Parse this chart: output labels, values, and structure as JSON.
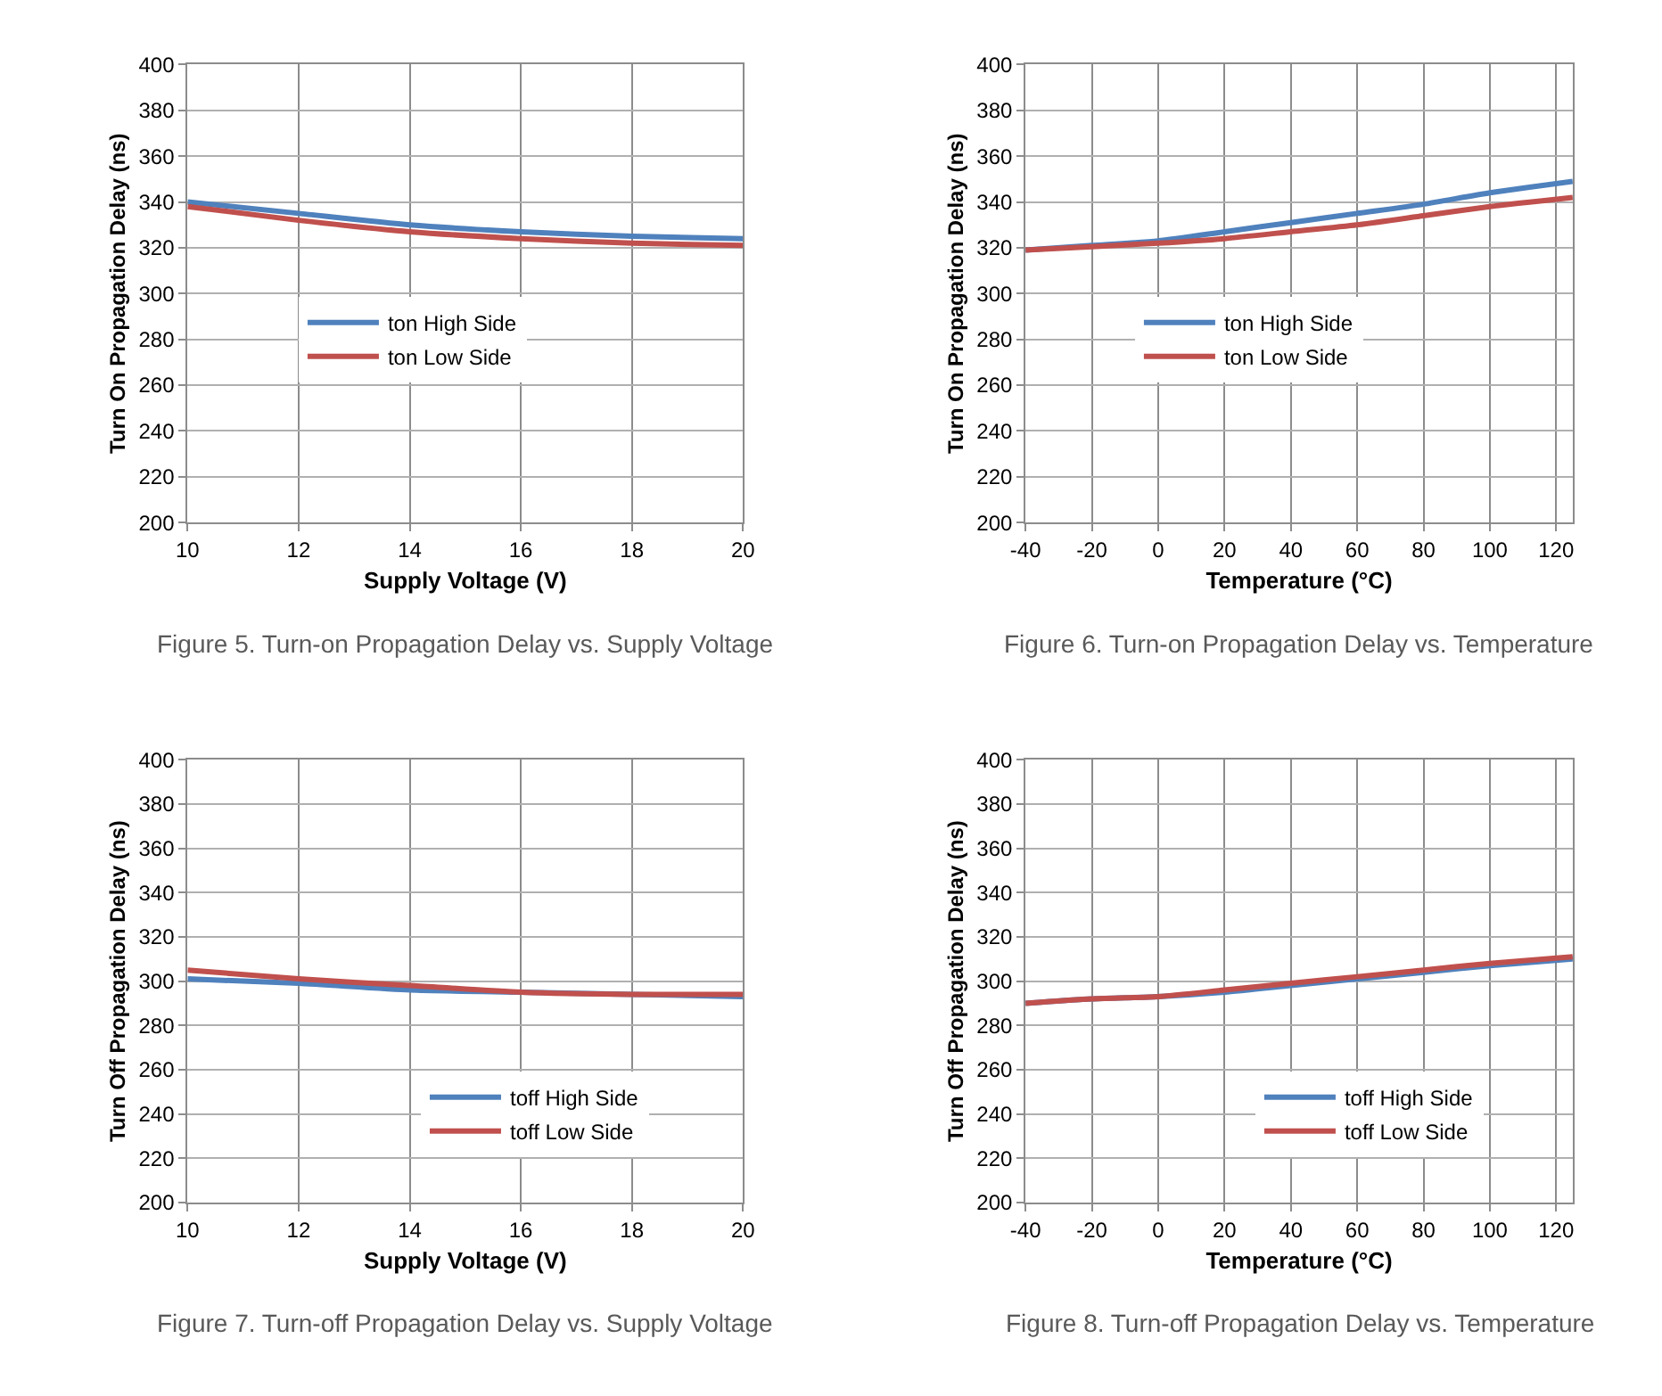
{
  "chart_data": [
    {
      "type": "line",
      "xlabel": "Supply Voltage (V)",
      "ylabel": "Turn On Propagation Delay (ns)",
      "annotations": [
        "Figure 5. Turn-on Propagation Delay vs. Supply Voltage"
      ],
      "x": [
        10,
        12,
        14,
        16,
        18,
        20
      ],
      "series": [
        {
          "name": "ton High Side",
          "color": "#4f81bd",
          "values": [
            340,
            335,
            330,
            327,
            325,
            324
          ]
        },
        {
          "name": "ton Low Side",
          "color": "#c0504d",
          "values": [
            338,
            332,
            327,
            324,
            322,
            321
          ]
        }
      ],
      "xlim": [
        10,
        20
      ],
      "xticks": [
        10,
        12,
        14,
        16,
        18,
        20
      ],
      "ylim": [
        200,
        400
      ],
      "yticks": [
        200,
        220,
        240,
        260,
        280,
        300,
        320,
        340,
        360,
        380,
        400
      ],
      "grid": true,
      "legend": "center left",
      "marker": "none",
      "line_style": "solid"
    },
    {
      "type": "line",
      "xlabel": "Temperature (°C)",
      "ylabel": "Turn On Propagation Delay (ns)",
      "annotations": [
        "Figure 6. Turn-on Propagation Delay vs. Temperature"
      ],
      "x": [
        -40,
        -20,
        0,
        20,
        40,
        60,
        80,
        100,
        125
      ],
      "series": [
        {
          "name": "ton High Side",
          "color": "#4f81bd",
          "values": [
            319,
            321,
            323,
            327,
            331,
            335,
            339,
            344,
            349
          ]
        },
        {
          "name": "ton Low Side",
          "color": "#c0504d",
          "values": [
            319,
            320.5,
            322,
            324,
            327,
            330,
            334,
            338,
            342
          ]
        }
      ],
      "xlim": [
        -40,
        125
      ],
      "xticks": [
        -40,
        -20,
        0,
        20,
        40,
        60,
        80,
        100,
        120
      ],
      "ylim": [
        200,
        400
      ],
      "yticks": [
        200,
        220,
        240,
        260,
        280,
        300,
        320,
        340,
        360,
        380,
        400
      ],
      "grid": true,
      "legend": "center left",
      "marker": "none",
      "line_style": "solid"
    },
    {
      "type": "line",
      "xlabel": "Supply Voltage (V)",
      "ylabel": "Turn Off Propagation Delay (ns)",
      "annotations": [
        "Figure 7. Turn-off Propagation Delay vs. Supply Voltage"
      ],
      "x": [
        10,
        12,
        14,
        16,
        18,
        20
      ],
      "series": [
        {
          "name": "toff High Side",
          "color": "#4f81bd",
          "values": [
            301,
            299,
            296,
            295,
            294,
            293
          ]
        },
        {
          "name": "toff Low Side",
          "color": "#c0504d",
          "values": [
            305,
            301,
            298,
            295,
            294,
            294
          ]
        }
      ],
      "xlim": [
        10,
        20
      ],
      "xticks": [
        10,
        12,
        14,
        16,
        18,
        20
      ],
      "ylim": [
        200,
        400
      ],
      "yticks": [
        200,
        220,
        240,
        260,
        280,
        300,
        320,
        340,
        360,
        380,
        400
      ],
      "grid": true,
      "legend": "bottom center",
      "marker": "none",
      "line_style": "solid"
    },
    {
      "type": "line",
      "xlabel": "Temperature (°C)",
      "ylabel": "Turn Off Propagation Delay (ns)",
      "annotations": [
        "Figure 8. Turn-off Propagation Delay vs. Temperature"
      ],
      "x": [
        -40,
        -20,
        0,
        20,
        40,
        60,
        80,
        100,
        125
      ],
      "series": [
        {
          "name": "toff High Side",
          "color": "#4f81bd",
          "values": [
            290,
            292,
            293,
            295,
            298,
            301,
            304,
            307,
            310
          ]
        },
        {
          "name": "toff Low Side",
          "color": "#c0504d",
          "values": [
            290,
            292,
            293,
            296,
            299,
            302,
            305,
            308,
            311
          ]
        }
      ],
      "xlim": [
        -40,
        125
      ],
      "xticks": [
        -40,
        -20,
        0,
        20,
        40,
        60,
        80,
        100,
        120
      ],
      "ylim": [
        200,
        400
      ],
      "yticks": [
        200,
        220,
        240,
        260,
        280,
        300,
        320,
        340,
        360,
        380,
        400
      ],
      "grid": true,
      "legend": "bottom center",
      "marker": "none",
      "line_style": "solid"
    }
  ]
}
